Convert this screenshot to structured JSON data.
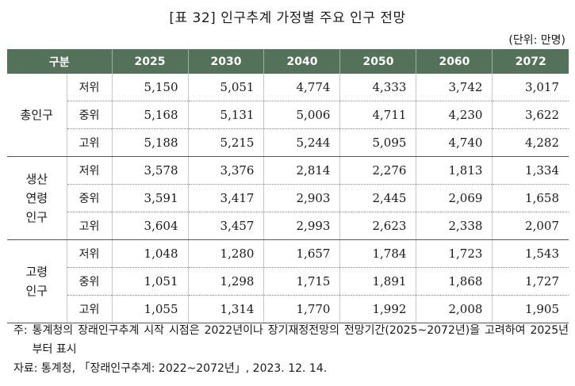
{
  "title": "[표 32] 인구추계 가정별 주요 인구 전망",
  "unit": "(단위: 만명)",
  "table": {
    "header": [
      "구분",
      "2025",
      "2030",
      "2040",
      "2050",
      "2060",
      "2072"
    ],
    "groups": [
      {
        "label": "총인구",
        "rows": [
          {
            "level": "저위",
            "values": [
              "5,150",
              "5,051",
              "4,774",
              "4,333",
              "3,742",
              "3,017"
            ]
          },
          {
            "level": "중위",
            "values": [
              "5,168",
              "5,131",
              "5,006",
              "4,711",
              "4,230",
              "3,622"
            ]
          },
          {
            "level": "고위",
            "values": [
              "5,188",
              "5,215",
              "5,244",
              "5,095",
              "4,740",
              "4,282"
            ]
          }
        ]
      },
      {
        "label": "생산\n연령\n인구",
        "rows": [
          {
            "level": "저위",
            "values": [
              "3,578",
              "3,376",
              "2,814",
              "2,276",
              "1,813",
              "1,334"
            ]
          },
          {
            "level": "중위",
            "values": [
              "3,591",
              "3,417",
              "2,903",
              "2,445",
              "2,069",
              "1,658"
            ]
          },
          {
            "level": "고위",
            "values": [
              "3,604",
              "3,457",
              "2,993",
              "2,623",
              "2,338",
              "2,007"
            ]
          }
        ]
      },
      {
        "label": "고령\n인구",
        "rows": [
          {
            "level": "저위",
            "values": [
              "1,048",
              "1,280",
              "1,657",
              "1,784",
              "1,723",
              "1,543"
            ]
          },
          {
            "level": "중위",
            "values": [
              "1,051",
              "1,298",
              "1,715",
              "1,891",
              "1,868",
              "1,727"
            ]
          },
          {
            "level": "고위",
            "values": [
              "1,055",
              "1,314",
              "1,770",
              "1,992",
              "2,008",
              "1,905"
            ]
          }
        ]
      }
    ]
  },
  "notes": {
    "note_prefix": "주:",
    "note_text": "통계청의 장래인구추계 시작 시점은 2022년이나 장기재정전망의 전망기간(2025~2072년)을 고려하여 2025년부터 표시",
    "source": "자료: 통계청, 「장래인구추계: 2022~2072년」, 2023. 12. 14."
  },
  "colors": {
    "header_bg": "#547259",
    "header_text": "#ffffff"
  }
}
